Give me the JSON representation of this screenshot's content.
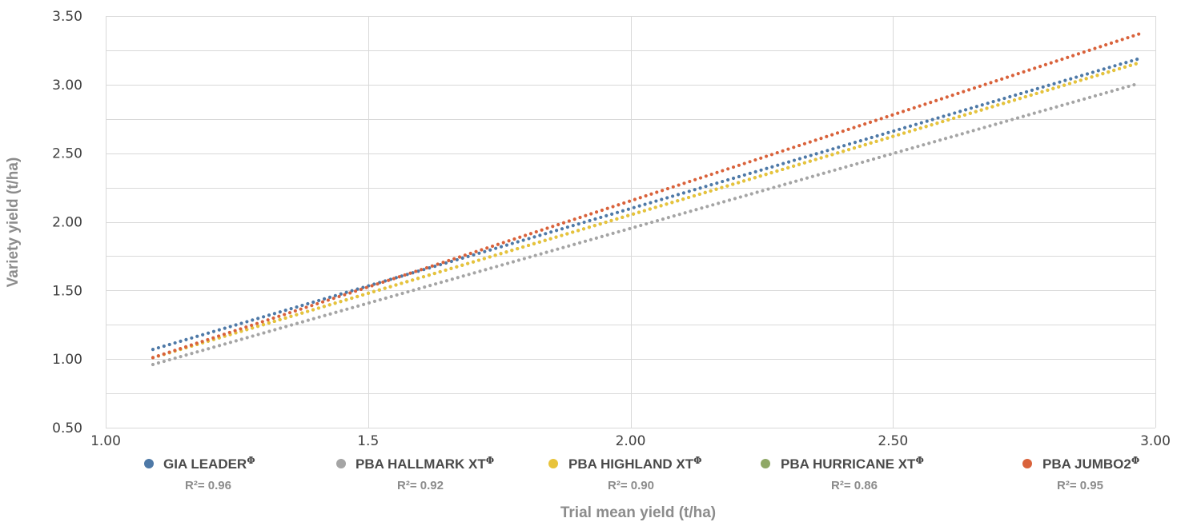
{
  "chart_data": {
    "type": "line",
    "title": "",
    "xlabel": "Trial mean yield (t/ha)",
    "ylabel": "Variety yield (t/ha)",
    "xlim": [
      1.0,
      3.0
    ],
    "ylim": [
      0.5,
      3.5
    ],
    "x_ticks": [
      1.0,
      1.5,
      2.0,
      2.5,
      3.0
    ],
    "x_tick_labels": [
      "1.00",
      "1.5",
      "2.00",
      "2.50",
      "3.00"
    ],
    "y_ticks": [
      0.5,
      1.0,
      1.5,
      2.0,
      2.5,
      3.0,
      3.5
    ],
    "y_tick_labels": [
      "0.50",
      "1.00",
      "1.50",
      "2.00",
      "2.50",
      "3.00",
      "3.50"
    ],
    "grid": true,
    "line_style": "dotted",
    "legend_position": "bottom",
    "series": [
      {
        "name": "GIA LEADER",
        "mark": "Φ",
        "r2_label": "R²= 0.96",
        "color": "#4e79a7",
        "x": [
          1.09,
          2.97
        ],
        "y": [
          1.07,
          3.19
        ]
      },
      {
        "name": "PBA HALLMARK XT",
        "mark": "Φ",
        "r2_label": "R²= 0.92",
        "color": "#a5a5a5",
        "x": [
          1.09,
          2.97
        ],
        "y": [
          0.96,
          3.01
        ]
      },
      {
        "name": "PBA HIGHLAND XT",
        "mark": "Φ",
        "r2_label": "R²= 0.90",
        "color": "#e8c33a",
        "x": [
          1.09,
          2.97
        ],
        "y": [
          1.01,
          3.16
        ]
      },
      {
        "name": "PBA HURRICANE XT",
        "mark": "Φ",
        "r2_label": "R²= 0.86",
        "color": "#8fa866",
        "x": [
          1.09,
          2.97
        ],
        "y": [
          1.01,
          3.16
        ]
      },
      {
        "name": "PBA JUMBO2",
        "mark": "Φ",
        "r2_label": "R²= 0.95",
        "color": "#d9623b",
        "x": [
          1.09,
          2.97
        ],
        "y": [
          1.01,
          3.37
        ]
      }
    ]
  }
}
